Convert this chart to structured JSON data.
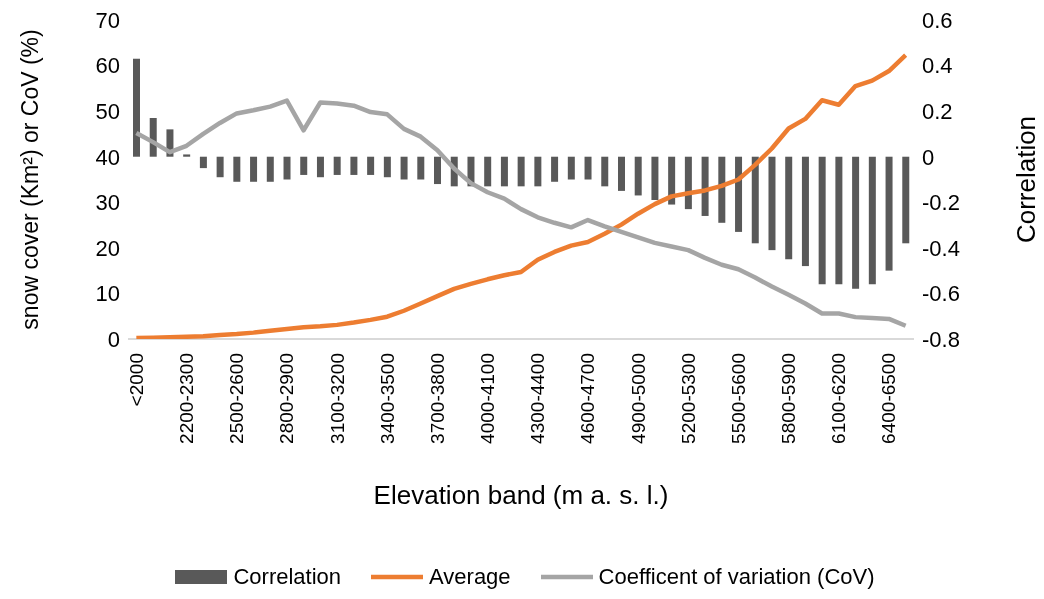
{
  "chart_data": {
    "type": "bar",
    "categories": [
      "<2000",
      null,
      null,
      "2200-2300",
      null,
      null,
      "2500-2600",
      null,
      null,
      "2800-2900",
      null,
      null,
      "3100-3200",
      null,
      null,
      "3400-3500",
      null,
      null,
      "3700-3800",
      null,
      null,
      "4000-4100",
      null,
      null,
      "4300-4400",
      null,
      null,
      "4600-4700",
      null,
      null,
      "4900-5000",
      null,
      null,
      "5200-5300",
      null,
      null,
      "5500-5600",
      null,
      null,
      "5800-5900",
      null,
      null,
      "6100-6200",
      null,
      null,
      "6400-6500",
      null
    ],
    "xlabel": "Elevation band (m a. s. l.)",
    "ylabel": "snow cover (Km²) or  CoV (%)",
    "y2label": "Correlation",
    "ylim": [
      0,
      70
    ],
    "yticks": [
      0,
      10,
      20,
      30,
      40,
      50,
      60,
      70
    ],
    "y2lim": [
      -0.8,
      0.6
    ],
    "y2ticks": [
      -0.8,
      -0.6,
      -0.4,
      -0.2,
      0,
      0.2,
      0.4,
      0.6
    ],
    "grid": false,
    "legend": "bottom",
    "series": [
      {
        "name": "Correlation",
        "axis": "y2",
        "color": "#595959",
        "values": [
          0.43,
          0.17,
          0.12,
          0.01,
          -0.05,
          -0.09,
          -0.11,
          -0.11,
          -0.11,
          -0.1,
          -0.08,
          -0.09,
          -0.08,
          -0.08,
          -0.08,
          -0.09,
          -0.1,
          -0.1,
          -0.12,
          -0.13,
          -0.13,
          -0.13,
          -0.13,
          -0.13,
          -0.13,
          -0.11,
          -0.1,
          -0.1,
          -0.13,
          -0.15,
          -0.17,
          -0.19,
          -0.21,
          -0.23,
          -0.26,
          -0.29,
          -0.33,
          -0.38,
          -0.41,
          -0.45,
          -0.48,
          -0.56,
          -0.56,
          -0.58,
          -0.56,
          -0.5,
          -0.38
        ]
      },
      {
        "name": "Average",
        "type": "line",
        "color": "#ed7d31",
        "values": [
          0.2,
          0.3,
          0.4,
          0.5,
          0.6,
          0.9,
          1.1,
          1.4,
          1.8,
          2.2,
          2.6,
          2.8,
          3.1,
          3.6,
          4.2,
          4.9,
          6.2,
          7.8,
          9.4,
          11.0,
          12.1,
          13.1,
          14.0,
          14.7,
          17.4,
          19.1,
          20.5,
          21.3,
          23.1,
          25.1,
          27.5,
          29.6,
          31.3,
          32.0,
          32.6,
          33.6,
          35.0,
          38.2,
          41.8,
          46.2,
          48.3,
          52.4,
          51.4,
          55.5,
          56.7,
          58.8,
          62.3
        ]
      },
      {
        "name": "Coefficent of variation (CoV)",
        "type": "line",
        "color": "#a5a5a5",
        "values": [
          45.2,
          43.2,
          41.0,
          42.4,
          45.0,
          47.4,
          49.5,
          50.2,
          51.0,
          52.3,
          45.8,
          51.9,
          51.7,
          51.2,
          49.8,
          49.3,
          46.1,
          44.4,
          41.4,
          37.4,
          34.2,
          32.2,
          30.8,
          28.5,
          26.7,
          25.5,
          24.5,
          26.1,
          24.7,
          23.5,
          22.3,
          21.1,
          20.3,
          19.5,
          17.8,
          16.3,
          15.3,
          13.5,
          11.5,
          9.7,
          7.8,
          5.6,
          5.6,
          4.8,
          4.6,
          4.4,
          2.9
        ]
      }
    ]
  }
}
